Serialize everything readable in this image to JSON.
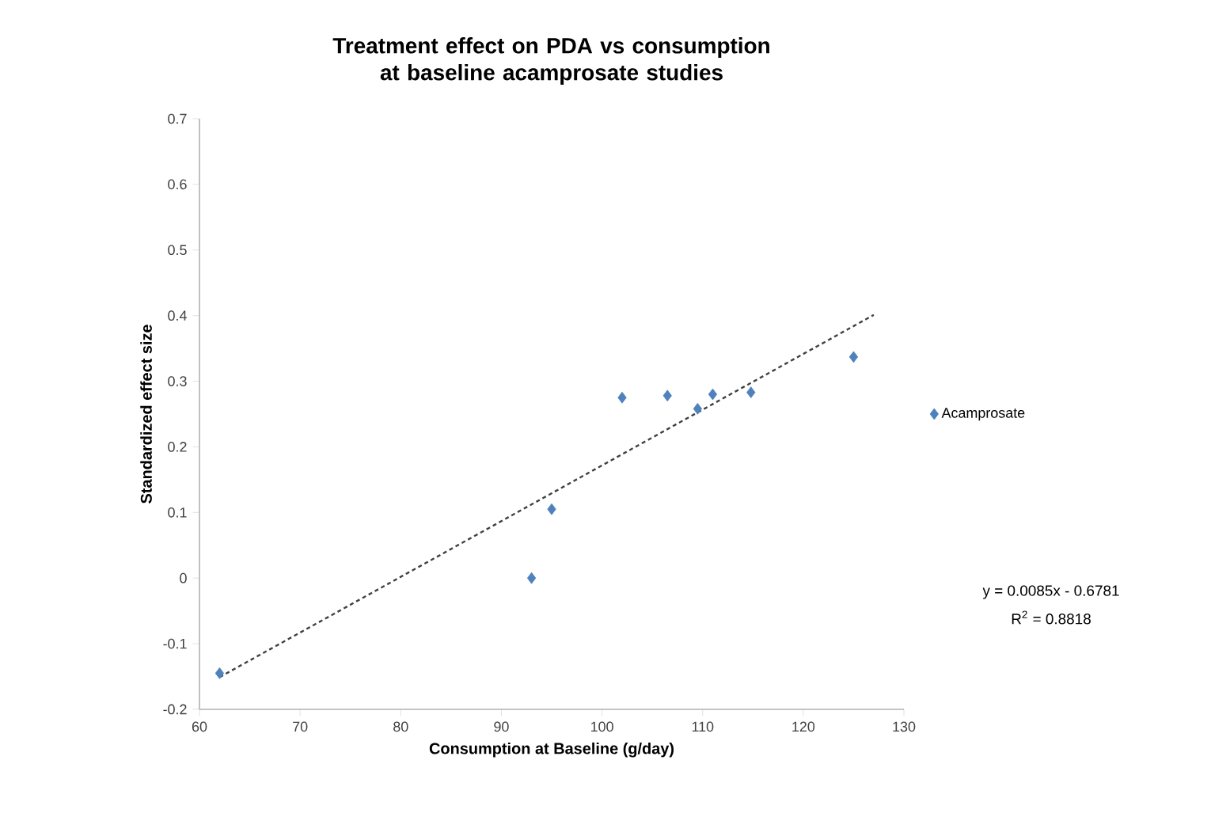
{
  "chart_data": {
    "type": "scatter",
    "title": "Treatment effect on PDA vs consumption at baseline acamprosate studies",
    "xlabel": "Consumption at Baseline (g/day)",
    "ylabel": "Standardized effect size",
    "series": [
      {
        "name": "Acamprosate",
        "color": "#4f81bd",
        "x": [
          62,
          93,
          95,
          102,
          106.5,
          109.5,
          111,
          114.8,
          125
        ],
        "values": [
          -0.145,
          0.0,
          0.105,
          0.275,
          0.278,
          0.258,
          0.28,
          0.283,
          0.337
        ],
        "marker": "diamond"
      },
      {
        "type": "line",
        "color": "#404040",
        "x": [
          62,
          127
        ],
        "values": [
          -0.151,
          0.401
        ],
        "line_style": "dashed",
        "marker": "none"
      }
    ],
    "xlim": [
      60,
      130
    ],
    "ylim": [
      -0.2,
      0.7
    ],
    "xticks": [
      60,
      70,
      80,
      90,
      100,
      110,
      120,
      130
    ],
    "yticks": [
      -0.2,
      -0.1,
      0,
      0.1,
      0.2,
      0.3,
      0.4,
      0.5,
      0.6,
      0.7
    ],
    "grid": false,
    "legend": "right",
    "annotations": [
      "y = 0.0085x - 0.6781",
      "R$^{2}$ = 0.8818"
    ]
  }
}
